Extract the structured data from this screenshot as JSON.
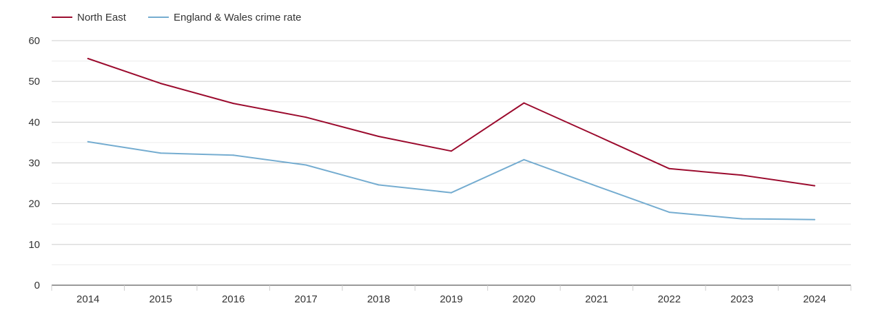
{
  "chart_data": {
    "type": "line",
    "title": "",
    "xlabel": "",
    "ylabel": "",
    "categories": [
      "2014",
      "2015",
      "2016",
      "2017",
      "2018",
      "2019",
      "2020",
      "2021",
      "2022",
      "2023",
      "2024"
    ],
    "yticks": [
      "0",
      "10",
      "20",
      "30",
      "40",
      "50",
      "60"
    ],
    "ylim": [
      0,
      60
    ],
    "grid": true,
    "legend_position": "top-left",
    "series": [
      {
        "name": "North East",
        "color": "#9b0a2d",
        "values": [
          55.6,
          49.5,
          44.6,
          41.2,
          36.5,
          32.9,
          44.7,
          36.7,
          28.6,
          27.0,
          24.4
        ]
      },
      {
        "name": "England & Wales crime rate",
        "color": "#74acd0",
        "values": [
          35.2,
          32.4,
          31.9,
          29.5,
          24.6,
          22.7,
          30.8,
          24.3,
          17.9,
          16.3,
          16.1
        ]
      }
    ]
  }
}
